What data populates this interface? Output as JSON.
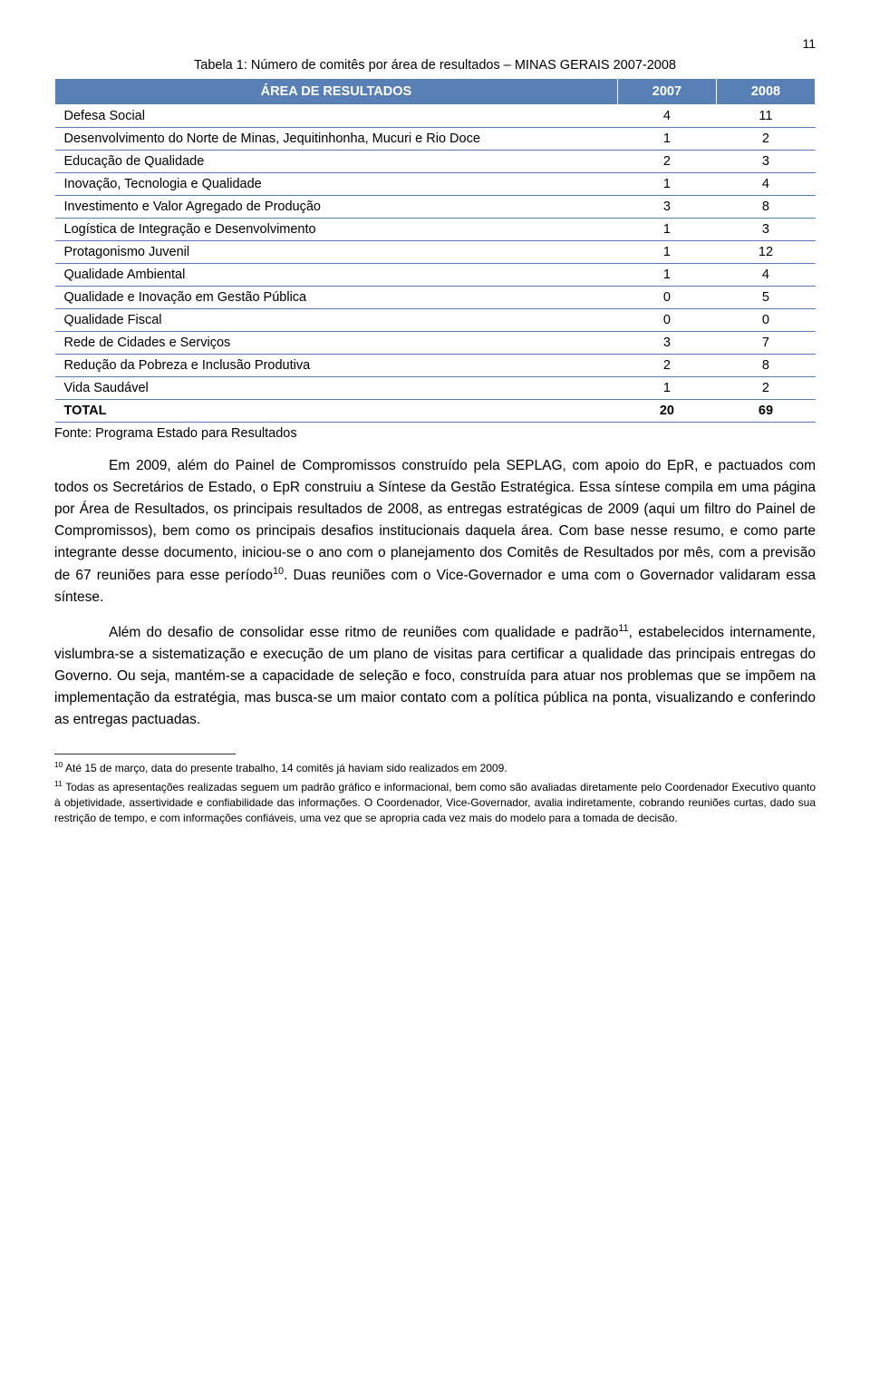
{
  "page_number": "11",
  "table": {
    "title": "Tabela 1: Número de comitês por área de resultados – MINAS GERAIS 2007-2008",
    "type": "table",
    "columns": [
      "ÁREA DE RESULTADOS",
      "2007",
      "2008"
    ],
    "column_widths": [
      "74%",
      "13%",
      "13%"
    ],
    "header_bg": "#5980b6",
    "header_fg": "#ffffff",
    "row_border_color": "#5980b6",
    "title_fontsize": 14.5,
    "cell_fontsize": 14.5,
    "rows": [
      {
        "label": "Defesa Social",
        "v2007": "4",
        "v2008": "11"
      },
      {
        "label": "Desenvolvimento do Norte de Minas, Jequitinhonha, Mucuri e Rio Doce",
        "v2007": "1",
        "v2008": "2"
      },
      {
        "label": "Educação de Qualidade",
        "v2007": "2",
        "v2008": "3"
      },
      {
        "label": "Inovação, Tecnologia e Qualidade",
        "v2007": "1",
        "v2008": "4"
      },
      {
        "label": "Investimento e Valor Agregado de Produção",
        "v2007": "3",
        "v2008": "8"
      },
      {
        "label": "Logística de Integração e Desenvolvimento",
        "v2007": "1",
        "v2008": "3"
      },
      {
        "label": "Protagonismo Juvenil",
        "v2007": "1",
        "v2008": "12"
      },
      {
        "label": "Qualidade Ambiental",
        "v2007": "1",
        "v2008": "4"
      },
      {
        "label": "Qualidade e Inovação em Gestão Pública",
        "v2007": "0",
        "v2008": "5"
      },
      {
        "label": "Qualidade Fiscal",
        "v2007": "0",
        "v2008": "0"
      },
      {
        "label": "Rede de Cidades e Serviços",
        "v2007": "3",
        "v2008": "7"
      },
      {
        "label": "Redução da Pobreza e Inclusão Produtiva",
        "v2007": "2",
        "v2008": "8"
      },
      {
        "label": "Vida Saudável",
        "v2007": "1",
        "v2008": "2"
      }
    ],
    "total": {
      "label": "TOTAL",
      "v2007": "20",
      "v2008": "69"
    },
    "source": "Fonte: Programa Estado para Resultados"
  },
  "paragraphs": {
    "p1a": "Em 2009, além do Painel de Compromissos construído pela SEPLAG, com apoio do EpR, e pactuados com todos os Secretários de Estado, o EpR construiu a Síntese da Gestão Estratégica. Essa síntese compila em uma página por Área de Resultados, os principais resultados de 2008, as entregas estratégicas de 2009 (aqui um filtro do Painel de Compromissos), bem como os principais desafios institucionais daquela área. Com base nesse resumo, e como parte integrante desse documento, iniciou-se o ano com o planejamento dos Comitês de Resultados por mês, com a previsão de 67 reuniões para esse período",
    "sup10": "10",
    "p1b": ". Duas reuniões com o Vice-Governador e uma com o Governador validaram essa síntese.",
    "p2a": "Além do desafio de consolidar esse ritmo de reuniões com qualidade e padrão",
    "sup11": "11",
    "p2b": ", estabelecidos internamente, vislumbra-se a sistematização e execução de um plano de visitas para certificar a qualidade das principais entregas do Governo. Ou seja, mantém-se a capacidade de seleção e foco, construída para atuar nos problemas que se impõem na implementação da estratégia, mas busca-se um maior contato com a política pública na ponta, visualizando e conferindo as entregas pactuadas."
  },
  "footnotes": {
    "f10num": "10",
    "f10": " Até 15 de março, data do presente trabalho, 14 comitês já haviam sido realizados em 2009.",
    "f11num": "11",
    "f11": " Todas as apresentações realizadas seguem um padrão gráfico e informacional, bem como são avaliadas diretamente pelo Coordenador Executivo quanto à objetividade, assertividade e confiabilidade das informações. O Coordenador, Vice-Governador, avalia indiretamente, cobrando reuniões curtas, dado sua restrição de tempo, e com informações confiáveis, uma vez que se apropria cada vez mais do modelo para a tomada de decisão."
  },
  "typography": {
    "body_font": "Arial",
    "body_fontsize": 15.5,
    "body_lineheight": 1.55,
    "footnote_fontsize": 12,
    "text_color": "#000000",
    "background_color": "#ffffff"
  }
}
